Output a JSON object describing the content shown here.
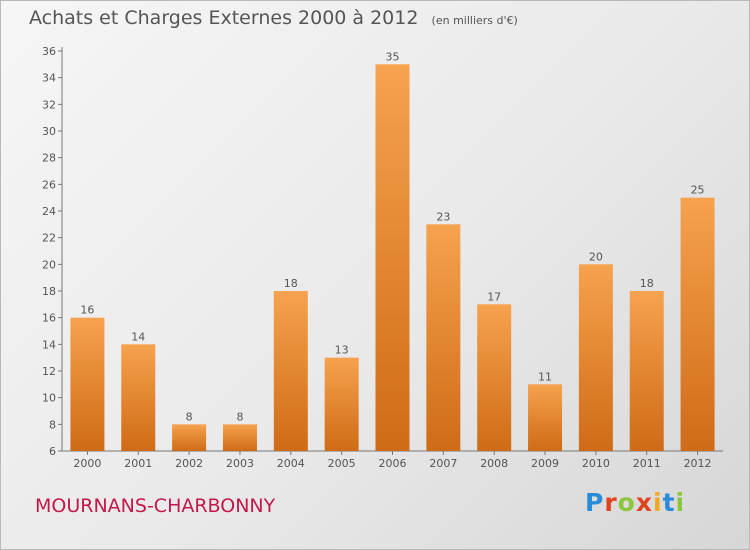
{
  "header": {
    "title": "Achats et Charges Externes 2000 à 2012",
    "subtitle": "(en milliers d'€)"
  },
  "footer": {
    "city": "MOURNANS-CHARBONNY",
    "brand_letters": [
      "P",
      "r",
      "o",
      "x",
      "i",
      "t",
      "i"
    ],
    "brand_colors": [
      "#2a8bd8",
      "#e0431f",
      "#8cc63f",
      "#e0431f",
      "#f3a81c",
      "#2a8bd8",
      "#8cc63f"
    ]
  },
  "colors": {
    "bar_top": "#f6a24e",
    "bar_bottom": "#cf6b16",
    "text": "#555555",
    "city": "#c2184a"
  },
  "chart_data": {
    "type": "bar",
    "title": "Achats et Charges Externes 2000 à 2012",
    "subtitle": "(en milliers d'€)",
    "categories": [
      "2000",
      "2001",
      "2002",
      "2003",
      "2004",
      "2005",
      "2006",
      "2007",
      "2008",
      "2009",
      "2010",
      "2011",
      "2012"
    ],
    "values": [
      16,
      14,
      8,
      8,
      18,
      13,
      35,
      23,
      17,
      11,
      20,
      18,
      25
    ],
    "ylim": [
      6,
      36
    ],
    "yticks": [
      6,
      8,
      10,
      12,
      14,
      16,
      18,
      20,
      22,
      24,
      26,
      28,
      30,
      32,
      34,
      36
    ],
    "grid": false,
    "legend": "none"
  }
}
